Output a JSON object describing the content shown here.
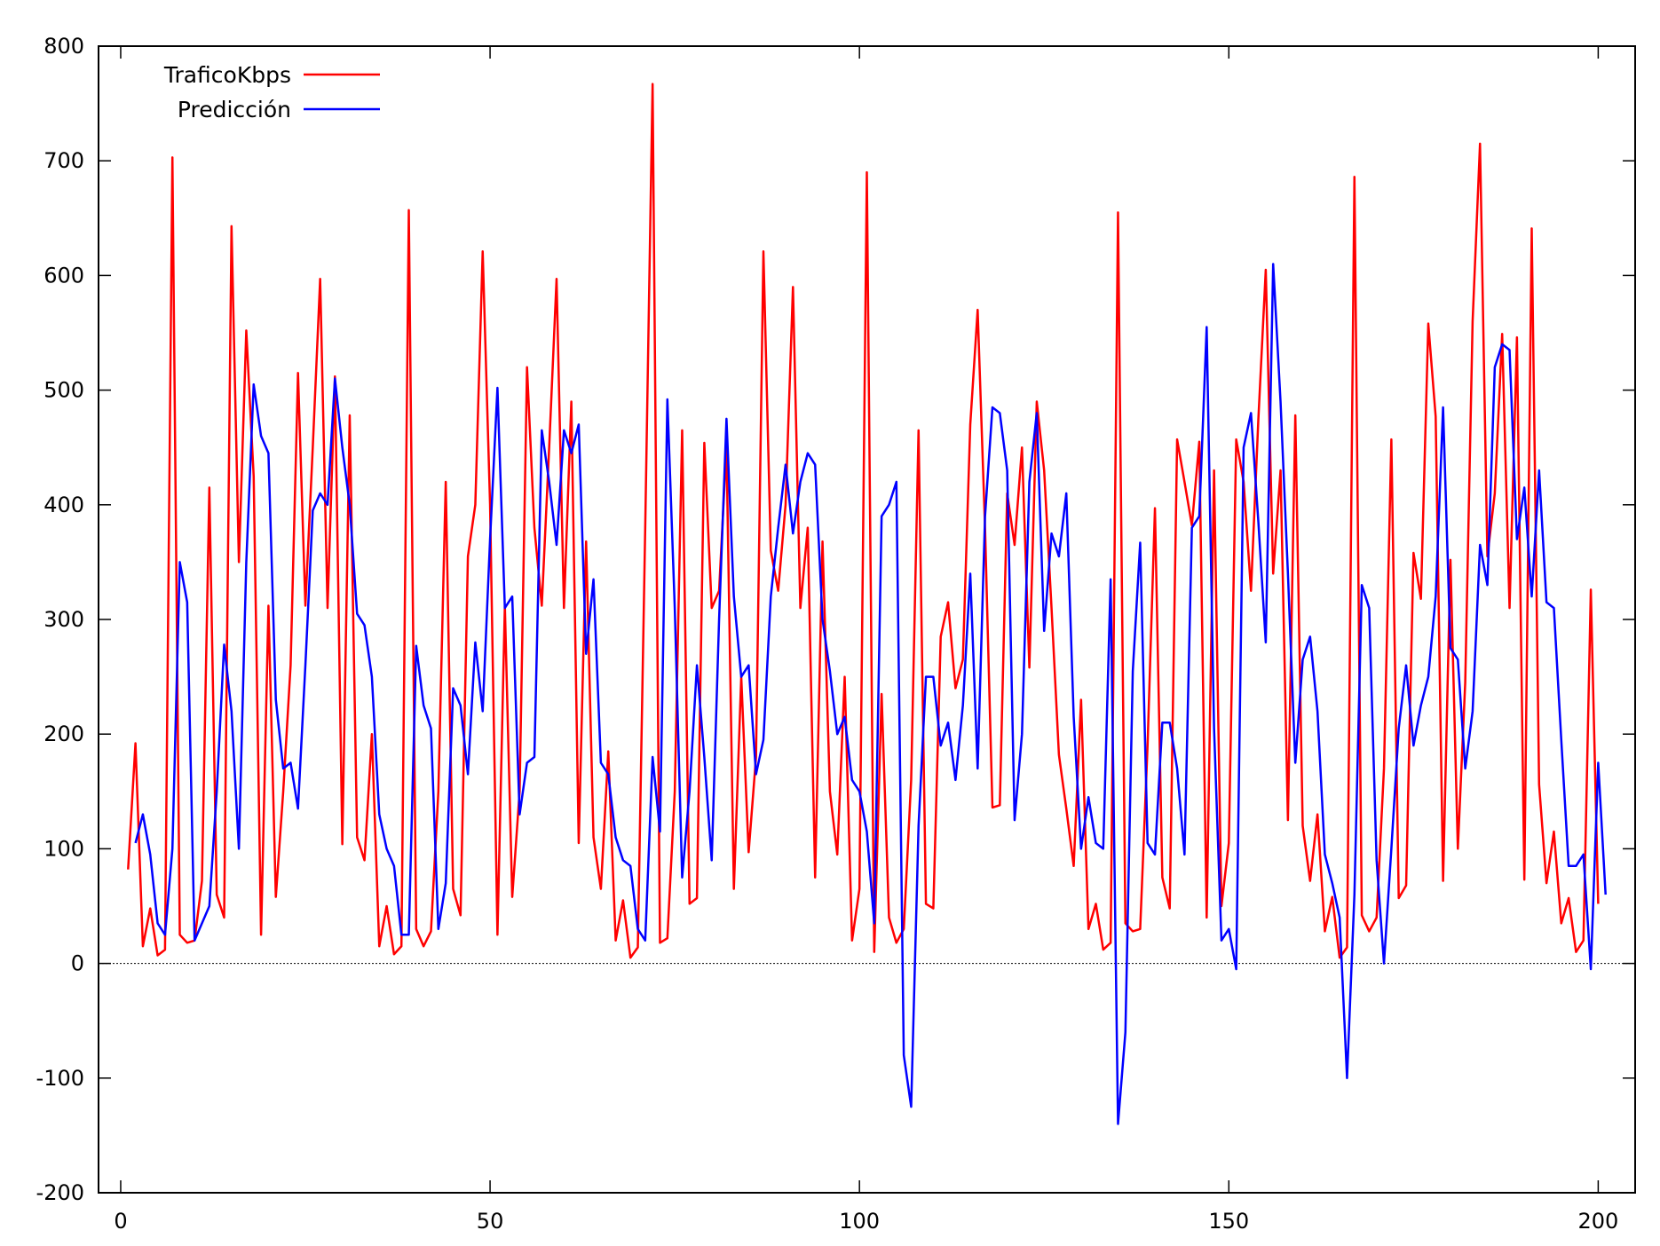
{
  "chart_data": {
    "type": "line",
    "title": "",
    "xlabel": "",
    "ylabel": "",
    "xlim": [
      -3,
      205
    ],
    "ylim": [
      -200,
      800
    ],
    "xticks": [
      0,
      50,
      100,
      150,
      200
    ],
    "yticks": [
      -200,
      -100,
      0,
      100,
      200,
      300,
      400,
      500,
      600,
      700,
      800
    ],
    "zero_line": true,
    "grid": false,
    "legend": "top-left",
    "series": [
      {
        "name": "TraficoKbps",
        "color": "#ff0000",
        "x_start": 1,
        "values": [
          82,
          192,
          15,
          48,
          7,
          12,
          703,
          25,
          18,
          20,
          72,
          415,
          60,
          40,
          643,
          350,
          552,
          425,
          25,
          312,
          58,
          150,
          260,
          515,
          312,
          450,
          597,
          310,
          512,
          104,
          478,
          110,
          90,
          200,
          15,
          50,
          8,
          15,
          657,
          30,
          15,
          28,
          150,
          420,
          65,
          42,
          355,
          400,
          621,
          400,
          25,
          312,
          58,
          150,
          520,
          380,
          312,
          450,
          597,
          310,
          490,
          105,
          368,
          110,
          65,
          185,
          20,
          55,
          5,
          14,
          380,
          767,
          18,
          22,
          150,
          465,
          52,
          57,
          454,
          310,
          325,
          451,
          65,
          250,
          97,
          180,
          621,
          360,
          325,
          400,
          590,
          310,
          380,
          75,
          368,
          150,
          95,
          250,
          20,
          65,
          690,
          10,
          235,
          40,
          18,
          30,
          160,
          465,
          52,
          48,
          285,
          315,
          240,
          265,
          470,
          570,
          380,
          136,
          138,
          410,
          365,
          450,
          258,
          490,
          430,
          310,
          182,
          135,
          85,
          230,
          30,
          52,
          12,
          18,
          655,
          35,
          28,
          30,
          190,
          397,
          75,
          48,
          457,
          420,
          382,
          455,
          40,
          430,
          50,
          105,
          457,
          420,
          325,
          475,
          605,
          340,
          430,
          125,
          478,
          120,
          72,
          130,
          28,
          58,
          5,
          14,
          686,
          42,
          28,
          40,
          170,
          457,
          57,
          68,
          358,
          318,
          558,
          477,
          72,
          352,
          100,
          245,
          560,
          715,
          355,
          410,
          549,
          310,
          546,
          73,
          641,
          156,
          70,
          115,
          35,
          57,
          10,
          20,
          326,
          52
        ]
      },
      {
        "name": "Predicción",
        "color": "#0000ff",
        "x_start": 2,
        "values": [
          105,
          130,
          95,
          35,
          25,
          100,
          350,
          315,
          20,
          35,
          50,
          150,
          278,
          220,
          100,
          350,
          505,
          460,
          445,
          230,
          170,
          175,
          135,
          260,
          395,
          410,
          400,
          510,
          450,
          400,
          305,
          295,
          250,
          130,
          100,
          85,
          25,
          25,
          277,
          225,
          205,
          30,
          70,
          240,
          225,
          165,
          280,
          220,
          370,
          502,
          310,
          320,
          130,
          175,
          180,
          465,
          420,
          365,
          465,
          445,
          470,
          270,
          335,
          175,
          165,
          110,
          90,
          85,
          30,
          20,
          180,
          115,
          492,
          310,
          75,
          150,
          260,
          180,
          90,
          300,
          475,
          320,
          250,
          260,
          165,
          195,
          320,
          380,
          435,
          375,
          420,
          445,
          435,
          300,
          255,
          200,
          215,
          160,
          150,
          115,
          35,
          390,
          400,
          420,
          -80,
          -125,
          120,
          250,
          250,
          190,
          210,
          160,
          225,
          340,
          170,
          390,
          485,
          480,
          430,
          125,
          200,
          420,
          480,
          290,
          375,
          355,
          410,
          215,
          100,
          145,
          105,
          100,
          335,
          -140,
          -60,
          255,
          367,
          105,
          95,
          210,
          210,
          170,
          95,
          380,
          390,
          555,
          205,
          20,
          30,
          -5,
          450,
          480,
          385,
          280,
          610,
          490,
          340,
          175,
          265,
          285,
          220,
          95,
          70,
          40,
          -100,
          60,
          330,
          310,
          90,
          0,
          100,
          205,
          260,
          190,
          225,
          250,
          320,
          485,
          275,
          265,
          170,
          220,
          365,
          330,
          520,
          540,
          535,
          370,
          415,
          320,
          430,
          315,
          310,
          195,
          85,
          85,
          95,
          -5,
          175,
          60
        ]
      }
    ]
  }
}
